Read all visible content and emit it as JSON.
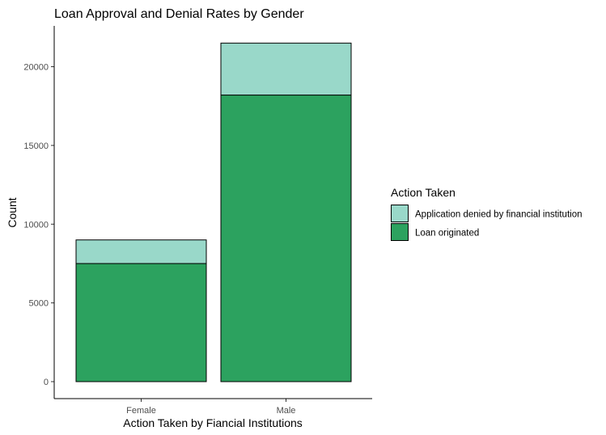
{
  "chart_data": {
    "type": "bar",
    "stacked": true,
    "title": "Loan Approval and Denial Rates by Gender",
    "xlabel": "Action Taken by Fiancial Institutions",
    "ylabel": "Count",
    "categories": [
      "Female",
      "Male"
    ],
    "ylim": [
      0,
      22500
    ],
    "yticks": [
      0,
      5000,
      10000,
      15000,
      20000
    ],
    "grid": false,
    "legend": {
      "title": "Action Taken",
      "placement": "right"
    },
    "series": [
      {
        "name": "Loan originated",
        "values": [
          7500,
          18200
        ],
        "color": "#2ca25f"
      },
      {
        "name": "Application denied by financial institution",
        "values": [
          1500,
          3300
        ],
        "color": "#99d8c9"
      }
    ]
  }
}
